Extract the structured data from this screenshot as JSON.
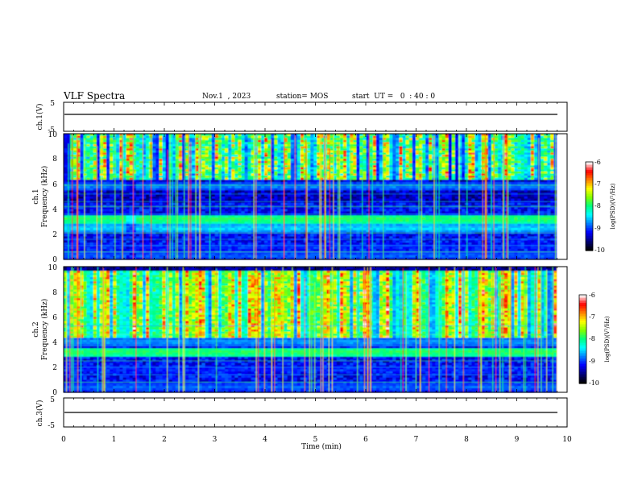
{
  "header": {
    "title": "VLF Spectra",
    "date": "Nov.1  , 2023",
    "station": "station= MOS",
    "start": "start  UT =   0  : 40 : 0"
  },
  "chart_data": [
    {
      "type": "line",
      "panel": "ch1-waveform",
      "ylabel": "ch.1(V)",
      "ylim": [
        -5,
        5
      ],
      "yticks": [
        "5",
        "-5"
      ],
      "xlim": [
        0,
        10
      ],
      "series": [
        {
          "x": [
            0,
            9.8
          ],
          "values": [
            0,
            0
          ]
        }
      ]
    },
    {
      "type": "heatmap",
      "panel": "ch1-spectrogram",
      "ylabel": "ch.1\nFrequency (kHz)",
      "xlim": [
        0,
        10
      ],
      "ylim": [
        0,
        10
      ],
      "yticks": [
        "0",
        "2",
        "4",
        "6",
        "8",
        "10"
      ],
      "data_xmax": 9.8,
      "colorbar": {
        "label": "log(PSD)(V²/Hz)",
        "range": [
          -10,
          -6
        ],
        "ticks": [
          "-6",
          "-7",
          "-8",
          "-9",
          "-10"
        ]
      },
      "colormap": [
        "#000000",
        "#00007f",
        "#0000ff",
        "#0080ff",
        "#00ffff",
        "#00ff80",
        "#80ff00",
        "#ffff00",
        "#ff8000",
        "#ff0000",
        "#ffffff"
      ],
      "bands_khz": [
        {
          "freq": 3.2,
          "level": -8.0
        },
        {
          "freq": 2.5,
          "level": -8.6
        },
        {
          "freq": 5.8,
          "level": -8.9
        },
        {
          "freq": 1.0,
          "level": -9.2
        },
        {
          "freq": 0.3,
          "level": -9.0
        }
      ]
    },
    {
      "type": "heatmap",
      "panel": "ch2-spectrogram",
      "ylabel": "ch.2\nFrequency (kHz)",
      "xlim": [
        0,
        10
      ],
      "ylim": [
        0,
        10
      ],
      "yticks": [
        "0",
        "2",
        "4",
        "6",
        "8",
        "10"
      ],
      "data_xmax": 9.8,
      "colorbar": {
        "label": "log(PSD)(V²/Hz)",
        "range": [
          -10,
          -6
        ],
        "ticks": [
          "-6",
          "-7",
          "-8",
          "-9",
          "-10"
        ]
      },
      "colormap": [
        "#000000",
        "#00007f",
        "#0000ff",
        "#0080ff",
        "#00ffff",
        "#00ff80",
        "#80ff00",
        "#ffff00",
        "#ff8000",
        "#ff0000",
        "#ffffff"
      ],
      "bands_khz": [
        {
          "freq": 3.2,
          "level": -8.0
        },
        {
          "freq": 4.0,
          "level": -8.8
        },
        {
          "freq": 1.8,
          "level": -9.2
        },
        {
          "freq": 0.4,
          "level": -9.0
        }
      ]
    },
    {
      "type": "line",
      "panel": "ch3-waveform",
      "ylabel": "ch.3(V)",
      "ylim": [
        -5,
        5
      ],
      "yticks": [
        "5",
        "-5"
      ],
      "xlim": [
        0,
        10
      ],
      "xlabel": "Time  (min)",
      "xticks": [
        "0",
        "1",
        "2",
        "3",
        "4",
        "5",
        "6",
        "7",
        "8",
        "9",
        "10"
      ],
      "series": [
        {
          "x": [
            0,
            9.8
          ],
          "values": [
            0,
            0
          ]
        }
      ]
    }
  ]
}
